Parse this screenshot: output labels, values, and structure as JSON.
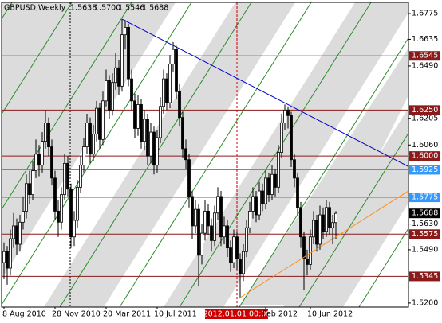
{
  "chart_data": {
    "type": "candlestick",
    "symbol": "GBPUSD,Weekly",
    "header_values": [
      "1.5638",
      "1.5700",
      "1.5546",
      "1.5688"
    ],
    "categories": [
      "8 Aug 2010",
      null,
      null,
      null,
      null,
      null,
      null,
      null,
      null,
      null,
      null,
      null,
      null,
      null,
      null,
      null,
      "28 Nov 2010",
      null,
      null,
      null,
      null,
      null,
      null,
      null,
      null,
      null,
      null,
      null,
      null,
      null,
      null,
      null,
      "20 Mar 2011",
      null,
      null,
      null,
      null,
      null,
      null,
      null,
      null,
      null,
      null,
      null,
      null,
      null,
      null,
      null,
      "10 Jul 2011",
      null,
      null,
      null,
      null,
      null,
      null,
      null,
      null,
      null,
      null,
      null,
      null,
      null,
      null,
      null,
      null,
      null,
      null,
      null,
      null,
      null,
      null,
      null,
      null,
      "2012.01.01 00:00",
      null,
      null,
      null,
      null,
      null,
      null,
      null,
      null,
      "Feb 2012",
      null,
      null,
      null,
      null,
      null,
      null,
      null,
      null,
      null,
      null,
      null,
      null,
      null,
      "10 Jun 2012",
      null,
      null,
      null,
      null,
      null,
      null,
      null,
      null
    ],
    "cursor": "2012.01.01 00:00",
    "open": [
      1.542,
      1.548,
      1.539,
      1.555,
      1.562,
      1.552,
      1.564,
      1.57,
      1.585,
      1.579,
      1.592,
      1.601,
      1.595,
      1.608,
      1.618,
      1.605,
      1.588,
      1.57,
      1.564,
      1.579,
      1.596,
      1.582,
      1.556,
      1.565,
      1.583,
      1.595,
      1.605,
      1.618,
      1.601,
      1.612,
      1.626,
      1.609,
      1.63,
      1.641,
      1.625,
      1.64,
      1.648,
      1.638,
      1.666,
      1.67,
      1.642,
      1.63,
      1.615,
      1.628,
      1.608,
      1.62,
      1.6,
      1.613,
      1.595,
      1.61,
      1.627,
      1.642,
      1.629,
      1.65,
      1.658,
      1.635,
      1.621,
      1.604,
      1.598,
      1.578,
      1.562,
      1.571,
      1.546,
      1.558,
      1.57,
      1.562,
      1.554,
      1.569,
      1.578,
      1.556,
      1.562,
      1.55,
      1.542,
      1.556,
      1.544,
      1.536,
      1.548,
      1.561,
      1.57,
      1.578,
      1.568,
      1.581,
      1.574,
      1.588,
      1.579,
      1.59,
      1.583,
      1.602,
      1.618,
      1.625,
      1.622,
      1.598,
      1.588,
      1.572,
      1.556,
      1.544,
      1.541,
      1.556,
      1.565,
      1.552,
      1.568,
      1.559,
      1.572,
      1.561,
      1.5638
    ],
    "high": [
      1.553,
      1.551,
      1.56,
      1.569,
      1.566,
      1.568,
      1.578,
      1.59,
      1.592,
      1.597,
      1.609,
      1.606,
      1.613,
      1.625,
      1.621,
      1.609,
      1.592,
      1.576,
      1.583,
      1.601,
      1.6,
      1.585,
      1.57,
      1.587,
      1.6,
      1.61,
      1.623,
      1.621,
      1.617,
      1.63,
      1.629,
      1.635,
      1.647,
      1.644,
      1.645,
      1.656,
      1.652,
      1.6745,
      1.674,
      1.672,
      1.647,
      1.634,
      1.633,
      1.631,
      1.625,
      1.623,
      1.618,
      1.616,
      1.614,
      1.632,
      1.647,
      1.645,
      1.655,
      1.662,
      1.66,
      1.639,
      1.624,
      1.609,
      1.601,
      1.581,
      1.576,
      1.574,
      1.563,
      1.576,
      1.574,
      1.566,
      1.573,
      1.583,
      1.581,
      1.567,
      1.565,
      1.554,
      1.56,
      1.559,
      1.547,
      1.552,
      1.565,
      1.575,
      1.583,
      1.581,
      1.586,
      1.585,
      1.592,
      1.591,
      1.595,
      1.593,
      1.606,
      1.623,
      1.628,
      1.627,
      1.624,
      1.601,
      1.591,
      1.575,
      1.559,
      1.549,
      1.56,
      1.57,
      1.568,
      1.573,
      1.572,
      1.576,
      1.575,
      1.568,
      1.57
    ],
    "low": [
      1.533,
      1.53,
      1.535,
      1.55,
      1.546,
      1.548,
      1.56,
      1.566,
      1.574,
      1.576,
      1.588,
      1.589,
      1.591,
      1.604,
      1.6,
      1.584,
      1.565,
      1.556,
      1.56,
      1.576,
      1.578,
      1.55,
      1.551,
      1.561,
      1.58,
      1.591,
      1.601,
      1.596,
      1.597,
      1.608,
      1.604,
      1.606,
      1.627,
      1.62,
      1.622,
      1.636,
      1.633,
      1.635,
      1.658,
      1.638,
      1.625,
      1.61,
      1.611,
      1.604,
      1.603,
      1.595,
      1.596,
      1.59,
      1.591,
      1.607,
      1.623,
      1.625,
      1.626,
      1.646,
      1.631,
      1.616,
      1.599,
      1.593,
      1.572,
      1.555,
      1.558,
      1.529,
      1.541,
      1.554,
      1.557,
      1.548,
      1.551,
      1.565,
      1.551,
      1.552,
      1.545,
      1.537,
      1.539,
      1.538,
      1.523,
      1.532,
      1.545,
      1.558,
      1.566,
      1.564,
      1.565,
      1.57,
      1.571,
      1.575,
      1.576,
      1.578,
      1.58,
      1.599,
      1.614,
      1.615,
      1.594,
      1.583,
      1.568,
      1.55,
      1.527,
      1.535,
      1.538,
      1.552,
      1.548,
      1.549,
      1.555,
      1.556,
      1.557,
      1.552,
      1.5546
    ],
    "close": [
      1.548,
      1.539,
      1.555,
      1.562,
      1.552,
      1.564,
      1.57,
      1.585,
      1.579,
      1.592,
      1.601,
      1.595,
      1.608,
      1.618,
      1.605,
      1.588,
      1.57,
      1.564,
      1.579,
      1.596,
      1.582,
      1.556,
      1.565,
      1.583,
      1.595,
      1.605,
      1.618,
      1.601,
      1.612,
      1.626,
      1.609,
      1.63,
      1.641,
      1.625,
      1.64,
      1.648,
      1.638,
      1.666,
      1.67,
      1.642,
      1.63,
      1.615,
      1.628,
      1.608,
      1.62,
      1.6,
      1.613,
      1.595,
      1.61,
      1.627,
      1.642,
      1.629,
      1.65,
      1.658,
      1.635,
      1.621,
      1.604,
      1.598,
      1.578,
      1.562,
      1.571,
      1.546,
      1.558,
      1.57,
      1.562,
      1.554,
      1.569,
      1.578,
      1.556,
      1.562,
      1.55,
      1.542,
      1.556,
      1.544,
      1.536,
      1.548,
      1.561,
      1.57,
      1.578,
      1.568,
      1.581,
      1.574,
      1.588,
      1.579,
      1.59,
      1.583,
      1.602,
      1.618,
      1.625,
      1.622,
      1.598,
      1.588,
      1.572,
      1.556,
      1.544,
      1.541,
      1.556,
      1.565,
      1.552,
      1.568,
      1.559,
      1.572,
      1.561,
      1.5638,
      1.5688
    ],
    "up_color": "#ffffff",
    "down_color": "#000000",
    "wick_color": "#000000",
    "ylim": [
      1.5178,
      1.6836
    ],
    "yticks": [
      1.6775,
      1.6635,
      {
        "value": 1.649,
        "label": "1.6490"
      },
      1.6205,
      {
        "value": 1.606,
        "label": "1.6060"
      },
      {
        "value": 1.563,
        "label": "1.5630"
      },
      {
        "value": 1.549,
        "label": "1.5490"
      },
      {
        "value": 1.52,
        "label": "1.5200"
      }
    ],
    "levels": [
      {
        "value": 1.6545,
        "color": "#8b1a1a"
      },
      {
        "value": 1.625,
        "label": "1.6250",
        "color": "#8b1a1a"
      },
      {
        "value": 1.6,
        "label": "1.6000",
        "color": "#8b1a1a"
      },
      {
        "value": 1.5925,
        "color": "#3399ff"
      },
      {
        "value": 1.5775,
        "color": "#3399ff"
      },
      {
        "value": 1.5575,
        "color": "#8b1a1a"
      },
      {
        "value": 1.5345,
        "color": "#8b1a1a"
      }
    ],
    "current_price": 1.5688,
    "trendlines": [
      {
        "points": [
          [
            37,
            1.6745
          ],
          [
            89,
            1.628
          ]
        ],
        "color": "#0000cc"
      },
      {
        "points": [
          [
            74,
            1.523
          ],
          [
            104,
            1.556
          ]
        ],
        "color": "#ff8c1a"
      }
    ]
  }
}
